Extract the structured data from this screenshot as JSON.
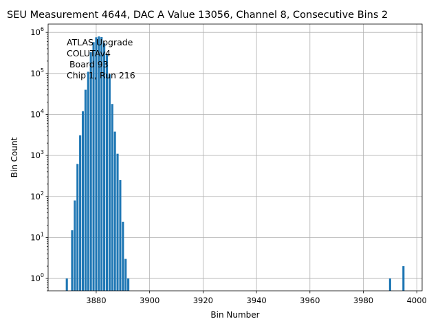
{
  "chart_data": {
    "type": "bar",
    "title": "SEU Measurement 4644, DAC A Value 13056, Channel 8, Consecutive Bins 2",
    "xlabel": "Bin Number",
    "ylabel": "Bin Count",
    "xlim": [
      3862,
      4002
    ],
    "ylim": [
      0.5,
      1600000
    ],
    "yscale": "log",
    "grid": true,
    "bar_color": "#1f77b4",
    "x_ticks": [
      3880,
      3900,
      3920,
      3940,
      3960,
      3980,
      4000
    ],
    "x_tick_labels": [
      "3880",
      "3900",
      "3920",
      "3940",
      "3960",
      "3980",
      "4000"
    ],
    "y_ticks": [
      {
        "value": 1,
        "base": "10",
        "exp": "0"
      },
      {
        "value": 10,
        "base": "10",
        "exp": "1"
      },
      {
        "value": 100,
        "base": "10",
        "exp": "2"
      },
      {
        "value": 1000,
        "base": "10",
        "exp": "3"
      },
      {
        "value": 10000,
        "base": "10",
        "exp": "4"
      },
      {
        "value": 100000,
        "base": "10",
        "exp": "5"
      },
      {
        "value": 1000000,
        "base": "10",
        "exp": "6"
      }
    ],
    "x": [
      3869,
      3871,
      3872,
      3873,
      3874,
      3875,
      3876,
      3877,
      3878,
      3879,
      3880,
      3881,
      3882,
      3883,
      3884,
      3885,
      3886,
      3887,
      3888,
      3889,
      3890,
      3891,
      3892,
      3990,
      3995
    ],
    "values": [
      1,
      15,
      80,
      620,
      3100,
      12000,
      40000,
      110000,
      330000,
      580000,
      760000,
      800000,
      770000,
      550000,
      300000,
      95000,
      18000,
      3800,
      1100,
      250,
      24,
      3,
      1,
      1,
      2
    ],
    "annotation": [
      "ATLAS Upgrade",
      "COLUTAv4",
      " Board 93",
      "Chip 1, Run 216"
    ]
  }
}
